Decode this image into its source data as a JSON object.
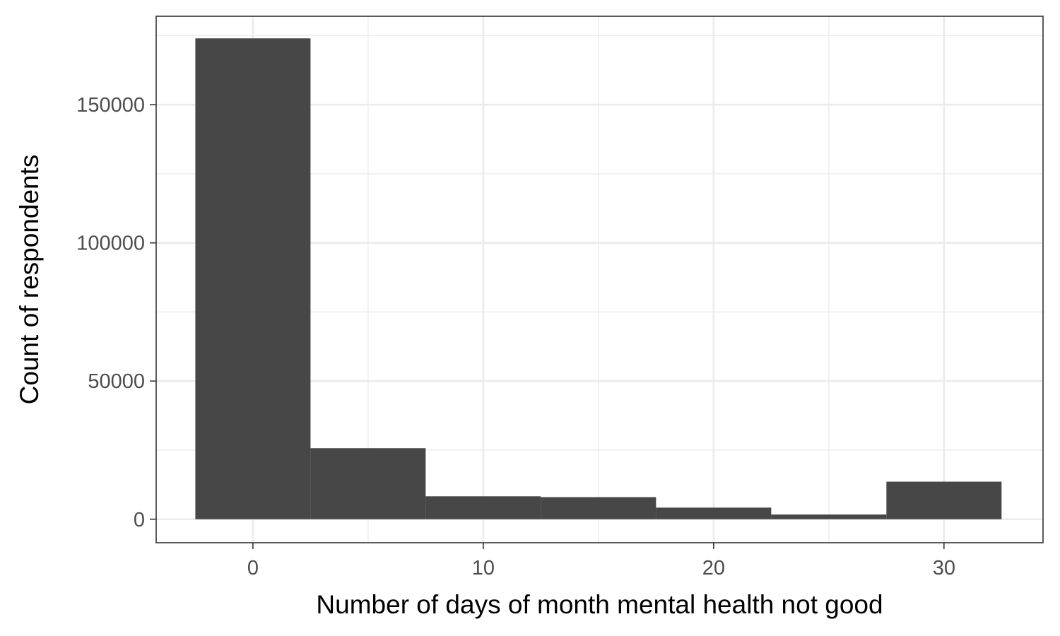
{
  "chart_data": {
    "type": "bar",
    "xlabel": "Number of days of month mental health not good",
    "ylabel": "Count of respondents",
    "xlim": [
      -4.2,
      34.3
    ],
    "ylim": [
      -8500,
      182000
    ],
    "x_ticks": [
      0,
      10,
      20,
      30
    ],
    "x_tick_labels": [
      "0",
      "10",
      "20",
      "30"
    ],
    "y_ticks": [
      0,
      50000,
      100000,
      150000
    ],
    "y_tick_labels": [
      "0",
      "50000",
      "100000",
      "150000"
    ],
    "bin_width": 5,
    "x": [
      0,
      5,
      10,
      15,
      20,
      25,
      30
    ],
    "values": [
      174000,
      25700,
      8300,
      8000,
      4200,
      1700,
      13600
    ],
    "grid": true,
    "legend": "none",
    "colors": {
      "bar": "#474747",
      "grid": "#ebebeb",
      "border": "#333333",
      "tick_label": "#4d4d4d"
    }
  }
}
